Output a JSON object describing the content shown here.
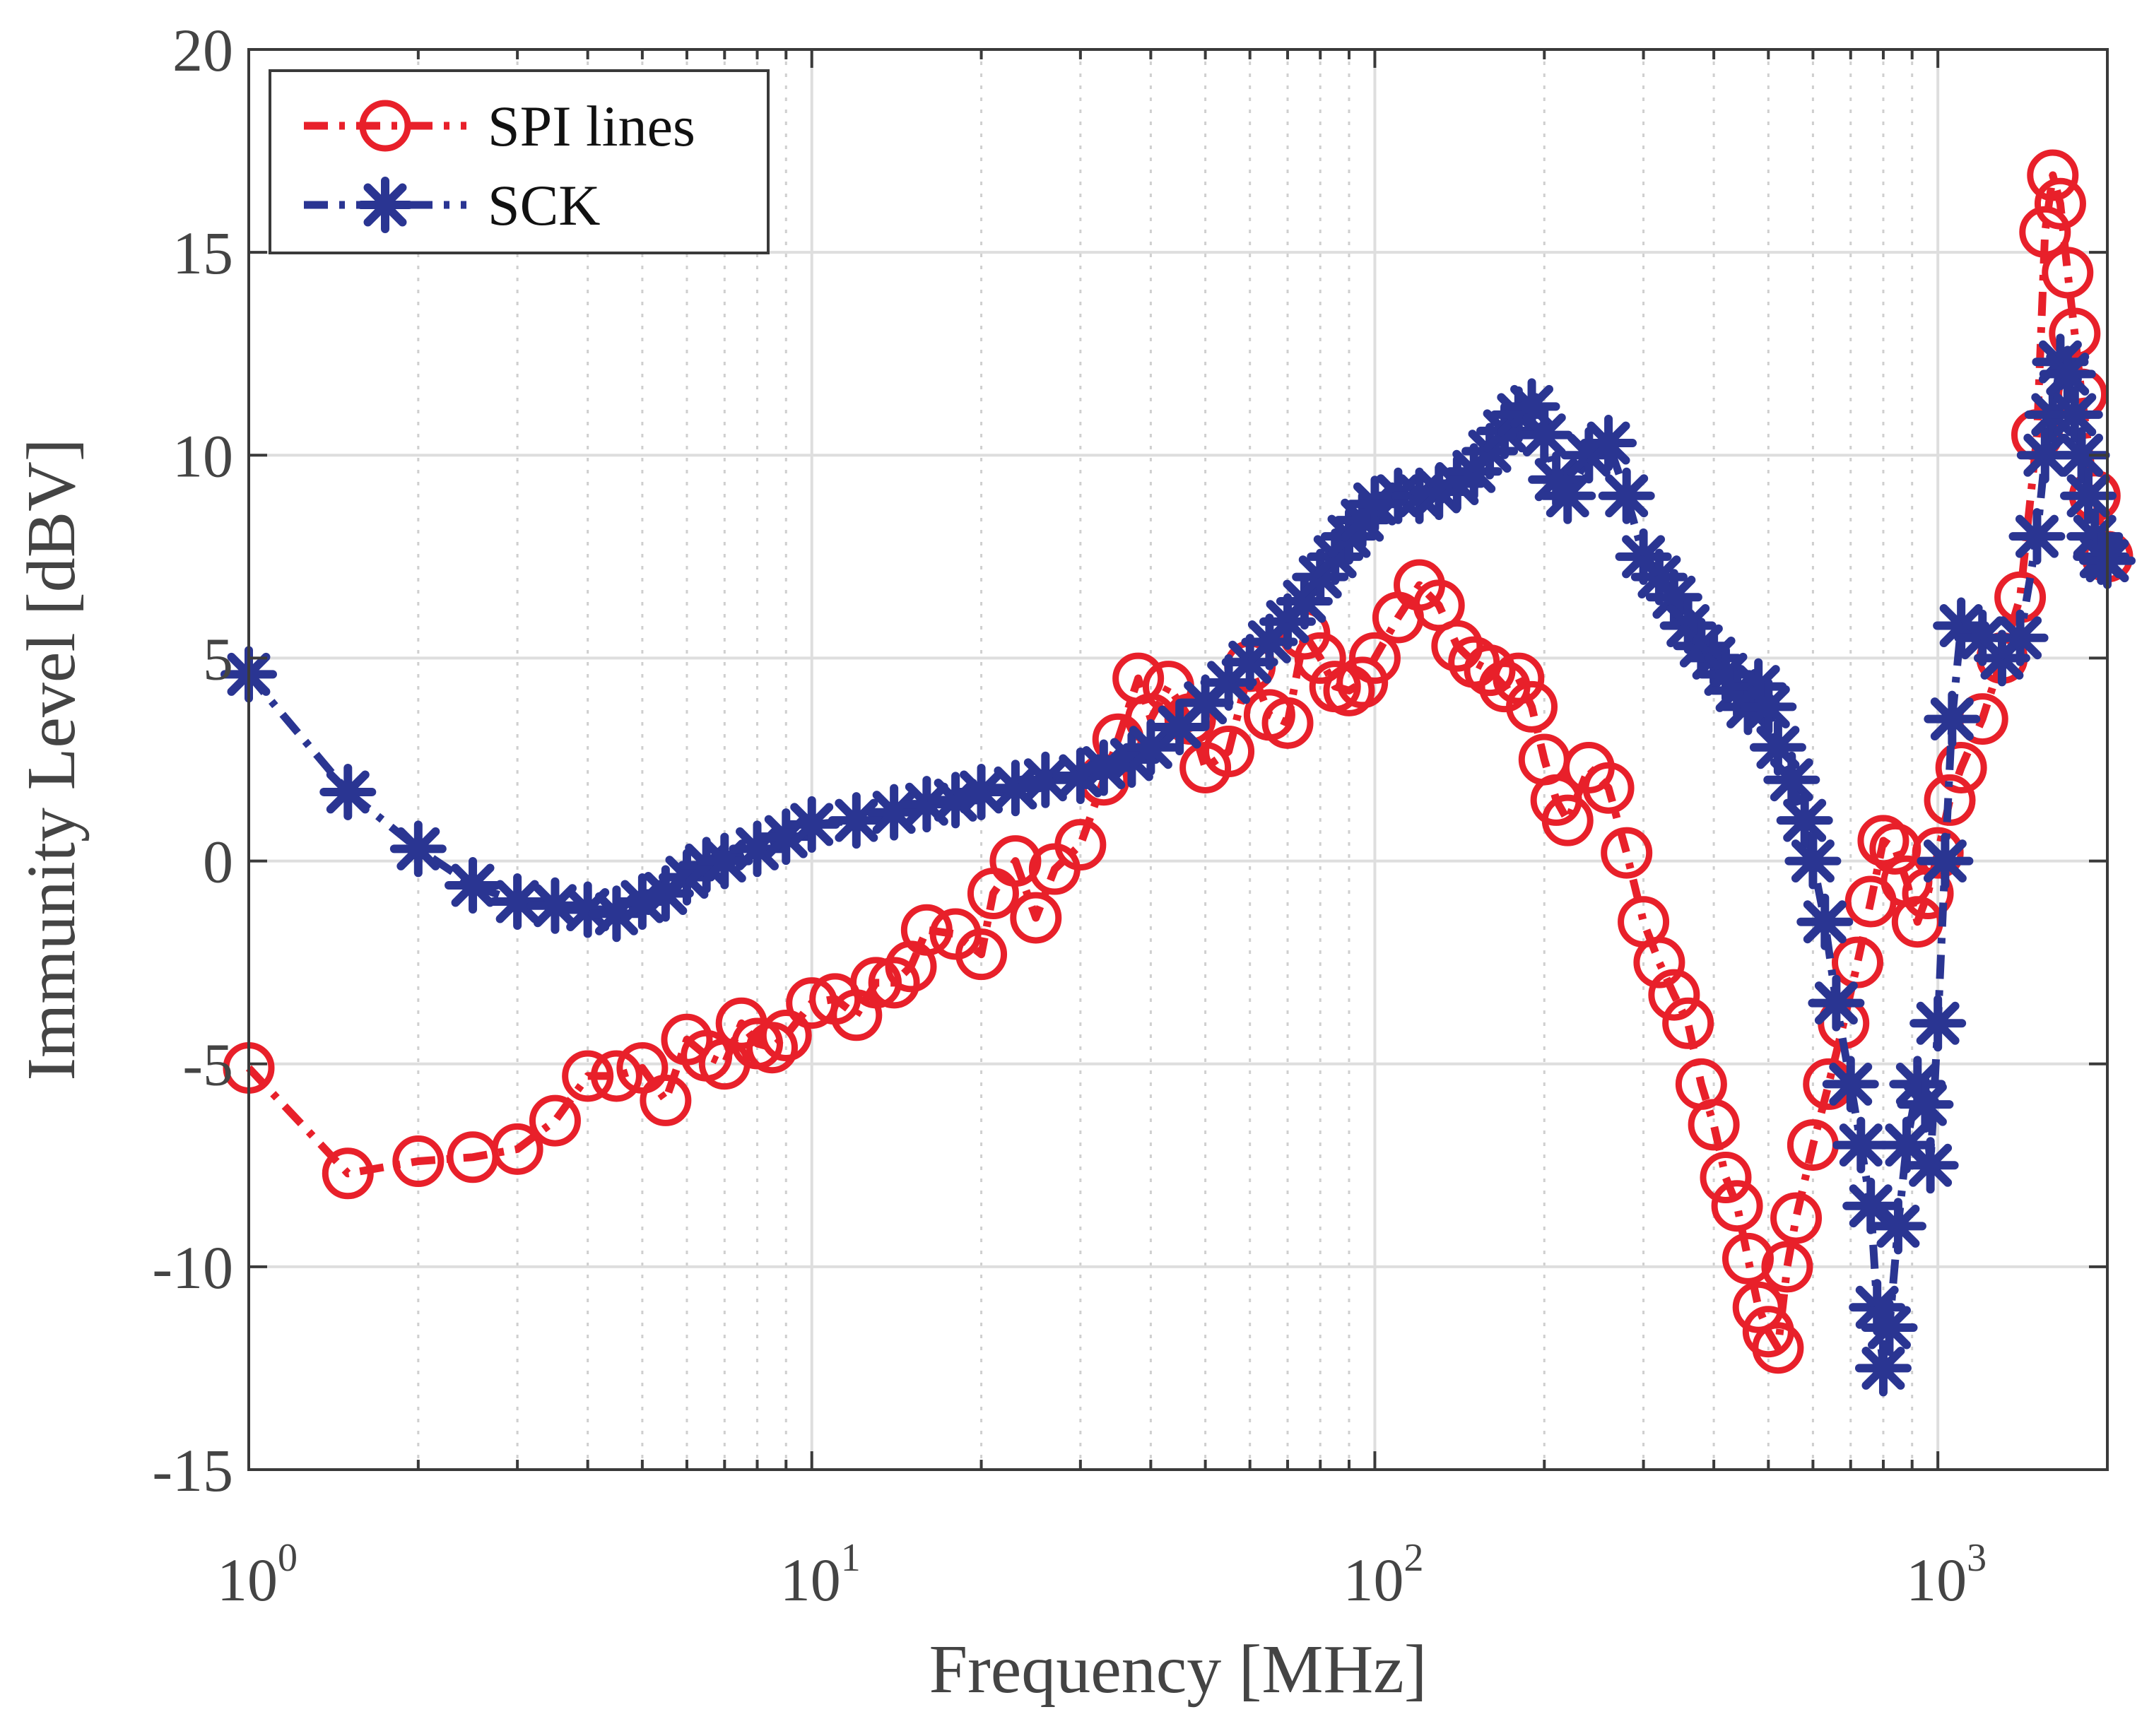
{
  "chart_data": {
    "type": "line",
    "xscale": "log",
    "xlim": [
      1,
      2000
    ],
    "ylim": [
      -15,
      20
    ],
    "xlabel": "Frequency [MHz]",
    "ylabel": "Immunity Level  [dBV]",
    "title": "",
    "grid": true,
    "legend_position": "top-left",
    "x_tick_labels": [
      {
        "base": "10",
        "exp": "0",
        "value": 1
      },
      {
        "base": "10",
        "exp": "1",
        "value": 10
      },
      {
        "base": "10",
        "exp": "2",
        "value": 100
      },
      {
        "base": "10",
        "exp": "3",
        "value": 1000
      }
    ],
    "y_ticks": [
      -15,
      -10,
      -5,
      0,
      5,
      10,
      15,
      20
    ],
    "y_tick_labels": [
      "-15",
      "-10",
      "-5",
      "0",
      "5",
      "10",
      "15",
      "20"
    ],
    "series": [
      {
        "name": "SPI lines",
        "color": "#e8202a",
        "marker": "circle",
        "line_style": "dash-dot",
        "points": [
          [
            1,
            -5.1
          ],
          [
            1.5,
            -7.7
          ],
          [
            2,
            -7.4
          ],
          [
            2.5,
            -7.3
          ],
          [
            3,
            -7.1
          ],
          [
            3.5,
            -6.4
          ],
          [
            4,
            -5.3
          ],
          [
            4.5,
            -5.3
          ],
          [
            5,
            -5.1
          ],
          [
            5.5,
            -5.9
          ],
          [
            6,
            -4.4
          ],
          [
            6.5,
            -4.8
          ],
          [
            7,
            -5.0
          ],
          [
            7.5,
            -4.0
          ],
          [
            8,
            -4.5
          ],
          [
            8.5,
            -4.6
          ],
          [
            9,
            -4.3
          ],
          [
            10,
            -3.5
          ],
          [
            11,
            -3.4
          ],
          [
            12,
            -3.8
          ],
          [
            13,
            -3.0
          ],
          [
            14,
            -3.0
          ],
          [
            15,
            -2.6
          ],
          [
            16,
            -1.7
          ],
          [
            18,
            -1.8
          ],
          [
            20,
            -2.3
          ],
          [
            21,
            -0.8
          ],
          [
            23,
            0.0
          ],
          [
            25,
            -1.4
          ],
          [
            27,
            -0.2
          ],
          [
            30,
            0.4
          ],
          [
            33,
            2.0
          ],
          [
            35,
            3.0
          ],
          [
            38,
            4.5
          ],
          [
            40,
            3.5
          ],
          [
            43,
            4.3
          ],
          [
            47,
            3.5
          ],
          [
            50,
            2.3
          ],
          [
            55,
            2.7
          ],
          [
            60,
            4.8
          ],
          [
            65,
            3.6
          ],
          [
            70,
            3.4
          ],
          [
            75,
            5.6
          ],
          [
            80,
            5.0
          ],
          [
            85,
            4.3
          ],
          [
            90,
            4.2
          ],
          [
            95,
            4.4
          ],
          [
            100,
            5.0
          ],
          [
            110,
            6.0
          ],
          [
            120,
            6.8
          ],
          [
            130,
            6.3
          ],
          [
            140,
            5.3
          ],
          [
            150,
            4.9
          ],
          [
            160,
            4.7
          ],
          [
            170,
            4.3
          ],
          [
            180,
            4.5
          ],
          [
            190,
            3.8
          ],
          [
            200,
            2.5
          ],
          [
            210,
            1.5
          ],
          [
            220,
            1.0
          ],
          [
            240,
            2.3
          ],
          [
            260,
            1.8
          ],
          [
            280,
            0.2
          ],
          [
            300,
            -1.5
          ],
          [
            320,
            -2.5
          ],
          [
            340,
            -3.3
          ],
          [
            360,
            -4.0
          ],
          [
            380,
            -5.5
          ],
          [
            400,
            -6.5
          ],
          [
            420,
            -7.8
          ],
          [
            440,
            -8.5
          ],
          [
            460,
            -9.8
          ],
          [
            480,
            -11.0
          ],
          [
            500,
            -11.6
          ],
          [
            520,
            -12.0
          ],
          [
            540,
            -10.0
          ],
          [
            560,
            -8.8
          ],
          [
            600,
            -7.0
          ],
          [
            640,
            -5.5
          ],
          [
            680,
            -4.0
          ],
          [
            720,
            -2.5
          ],
          [
            760,
            -1.0
          ],
          [
            800,
            0.5
          ],
          [
            840,
            0.3
          ],
          [
            880,
            -0.5
          ],
          [
            920,
            -1.5
          ],
          [
            960,
            -0.8
          ],
          [
            1000,
            0.2
          ],
          [
            1050,
            1.5
          ],
          [
            1100,
            2.3
          ],
          [
            1200,
            3.5
          ],
          [
            1300,
            5.0
          ],
          [
            1400,
            6.5
          ],
          [
            1500,
            10.5
          ],
          [
            1550,
            15.5
          ],
          [
            1600,
            16.9
          ],
          [
            1650,
            16.2
          ],
          [
            1700,
            14.5
          ],
          [
            1750,
            13.0
          ],
          [
            1800,
            11.5
          ],
          [
            1900,
            9.0
          ],
          [
            2000,
            7.5
          ]
        ]
      },
      {
        "name": "SCK",
        "color": "#2a3592",
        "marker": "asterisk",
        "line_style": "dash-dot",
        "points": [
          [
            1,
            4.6
          ],
          [
            1.5,
            1.7
          ],
          [
            2,
            0.3
          ],
          [
            2.5,
            -0.6
          ],
          [
            3,
            -1.0
          ],
          [
            3.5,
            -1.1
          ],
          [
            4,
            -1.2
          ],
          [
            4.5,
            -1.3
          ],
          [
            5,
            -1.0
          ],
          [
            5.5,
            -0.8
          ],
          [
            6,
            -0.4
          ],
          [
            6.5,
            -0.1
          ],
          [
            7,
            0.0
          ],
          [
            8,
            0.3
          ],
          [
            9,
            0.6
          ],
          [
            10,
            0.9
          ],
          [
            12,
            1.0
          ],
          [
            14,
            1.2
          ],
          [
            16,
            1.4
          ],
          [
            18,
            1.5
          ],
          [
            20,
            1.7
          ],
          [
            23,
            1.8
          ],
          [
            26,
            2.0
          ],
          [
            30,
            2.1
          ],
          [
            33,
            2.3
          ],
          [
            37,
            2.5
          ],
          [
            40,
            2.8
          ],
          [
            45,
            3.3
          ],
          [
            50,
            3.9
          ],
          [
            55,
            4.4
          ],
          [
            60,
            4.9
          ],
          [
            65,
            5.4
          ],
          [
            70,
            5.9
          ],
          [
            75,
            6.4
          ],
          [
            80,
            7.0
          ],
          [
            85,
            7.5
          ],
          [
            90,
            8.0
          ],
          [
            95,
            8.4
          ],
          [
            100,
            8.8
          ],
          [
            110,
            9.0
          ],
          [
            120,
            9.0
          ],
          [
            130,
            9.1
          ],
          [
            140,
            9.3
          ],
          [
            150,
            9.6
          ],
          [
            160,
            10.1
          ],
          [
            170,
            10.6
          ],
          [
            180,
            11.0
          ],
          [
            190,
            11.2
          ],
          [
            200,
            10.5
          ],
          [
            210,
            9.4
          ],
          [
            220,
            9.0
          ],
          [
            240,
            10.0
          ],
          [
            260,
            10.3
          ],
          [
            280,
            9.0
          ],
          [
            300,
            7.5
          ],
          [
            320,
            7.0
          ],
          [
            340,
            6.5
          ],
          [
            360,
            5.8
          ],
          [
            380,
            5.3
          ],
          [
            400,
            5.0
          ],
          [
            420,
            4.6
          ],
          [
            440,
            4.2
          ],
          [
            460,
            3.8
          ],
          [
            480,
            4.3
          ],
          [
            500,
            3.8
          ],
          [
            520,
            2.8
          ],
          [
            550,
            2.0
          ],
          [
            580,
            1.0
          ],
          [
            600,
            0.0
          ],
          [
            630,
            -1.5
          ],
          [
            660,
            -3.5
          ],
          [
            700,
            -5.5
          ],
          [
            730,
            -7.0
          ],
          [
            760,
            -8.5
          ],
          [
            780,
            -11.0
          ],
          [
            800,
            -12.5
          ],
          [
            820,
            -11.5
          ],
          [
            850,
            -9.0
          ],
          [
            880,
            -7.0
          ],
          [
            920,
            -5.5
          ],
          [
            950,
            -6.0
          ],
          [
            970,
            -7.5
          ],
          [
            1000,
            -4.0
          ],
          [
            1030,
            0.0
          ],
          [
            1060,
            3.5
          ],
          [
            1100,
            5.8
          ],
          [
            1200,
            5.5
          ],
          [
            1300,
            5.0
          ],
          [
            1400,
            5.5
          ],
          [
            1500,
            8.0
          ],
          [
            1550,
            10.0
          ],
          [
            1600,
            11.0
          ],
          [
            1650,
            12.3
          ],
          [
            1700,
            12.0
          ],
          [
            1750,
            11.0
          ],
          [
            1800,
            10.0
          ],
          [
            1850,
            9.0
          ],
          [
            1900,
            8.0
          ],
          [
            1950,
            7.5
          ],
          [
            2000,
            7.4
          ]
        ]
      }
    ]
  }
}
